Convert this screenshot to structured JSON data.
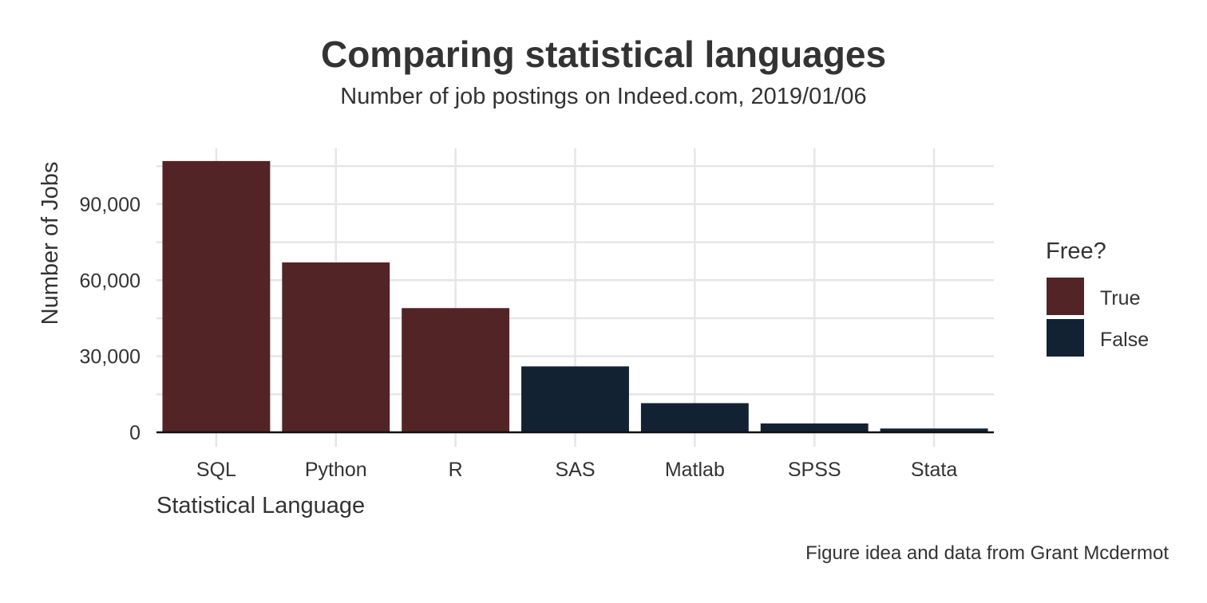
{
  "chart_data": {
    "type": "bar",
    "title": "Comparing statistical languages",
    "subtitle": "Number of job postings on Indeed.com, 2019/01/06",
    "xlabel": "Statistical Language",
    "ylabel": "Number of Jobs",
    "caption": "Figure idea and data from Grant Mcdermot",
    "categories": [
      "SQL",
      "Python",
      "R",
      "SAS",
      "Matlab",
      "SPSS",
      "Stata"
    ],
    "values": [
      107000,
      67000,
      49000,
      26000,
      11500,
      3500,
      1500
    ],
    "free": [
      "True",
      "True",
      "True",
      "False",
      "False",
      "False",
      "False"
    ],
    "ylim": [
      0,
      112000
    ],
    "yticks": [
      0,
      30000,
      60000,
      90000
    ],
    "ytick_labels": [
      "0",
      "30,000",
      "60,000",
      "90,000"
    ],
    "grid": true,
    "legend": {
      "title": "Free?",
      "placement": "right",
      "entries": [
        {
          "label": "True",
          "color": "#532426"
        },
        {
          "label": "False",
          "color": "#132233"
        }
      ]
    }
  }
}
